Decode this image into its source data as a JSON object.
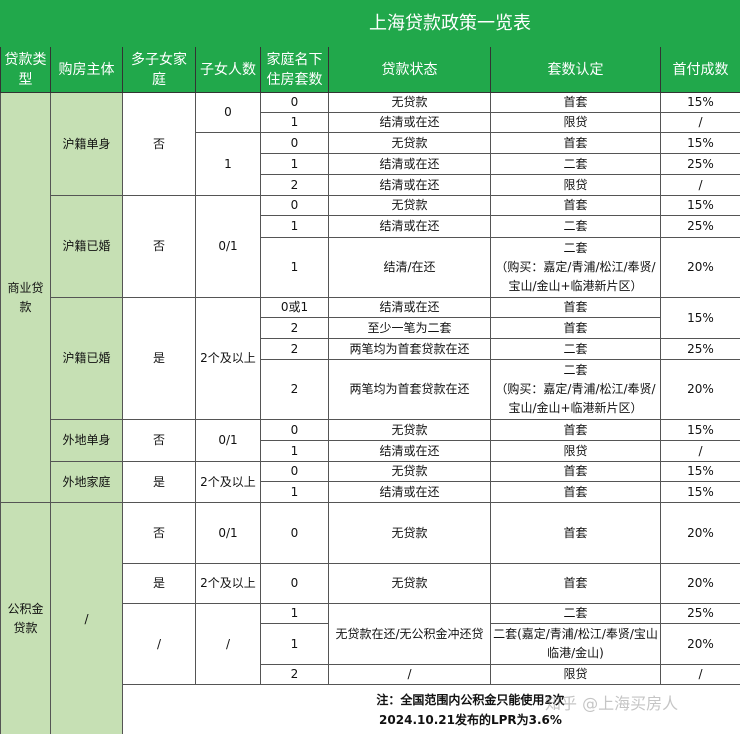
{
  "title": "上海贷款政策一览表",
  "headers": [
    "贷款类型",
    "购房主体",
    "多子女家庭",
    "子女人数",
    "家庭名下住房套数",
    "贷款状态",
    "套数认定",
    "首付成数"
  ],
  "loan_types": [
    "商业贷款",
    "公积金贷款"
  ],
  "buyers": [
    "沪籍单身",
    "沪籍已婚",
    "沪籍已婚",
    "外地单身",
    "外地家庭",
    "/"
  ],
  "multi_child": [
    "否",
    "否",
    "是",
    "否",
    "是",
    "否",
    "是",
    "/"
  ],
  "children": [
    "0",
    "1",
    "0/1",
    "2个及以上",
    "0/1",
    "2个及以上",
    "0/1",
    "2个及以上",
    "/"
  ],
  "rows": [
    {
      "units": "0",
      "status": "无贷款",
      "tier": "首套",
      "down": "15%"
    },
    {
      "units": "1",
      "status": "结清或在还",
      "tier": "限贷",
      "down": "/"
    },
    {
      "units": "0",
      "status": "无贷款",
      "tier": "首套",
      "down": "15%"
    },
    {
      "units": "1",
      "status": "结清或在还",
      "tier": "二套",
      "down": "25%"
    },
    {
      "units": "2",
      "status": "结清或在还",
      "tier": "限贷",
      "down": "/"
    },
    {
      "units": "0",
      "status": "无贷款",
      "tier": "首套",
      "down": "15%"
    },
    {
      "units": "1",
      "status": "结清或在还",
      "tier": "二套",
      "down": "25%"
    },
    {
      "units": "1",
      "status": "结清/在还",
      "tier": "二套",
      "tier_note": "（购买：嘉定/青浦/松江/奉贤/宝山/金山+临港新片区）",
      "down": "20%"
    },
    {
      "units": "0或1",
      "status": "结清或在还",
      "tier": "首套",
      "down": "15%"
    },
    {
      "units": "2",
      "status": "至少一笔为二套",
      "tier": "首套"
    },
    {
      "units": "2",
      "status": "两笔均为首套贷款在还",
      "tier": "二套",
      "down": "25%"
    },
    {
      "units": "2",
      "status": "两笔均为首套贷款在还",
      "tier": "二套",
      "tier_note": "（购买：嘉定/青浦/松江/奉贤/宝山/金山+临港新片区）",
      "down": "20%"
    },
    {
      "units": "0",
      "status": "无贷款",
      "tier": "首套",
      "down": "15%"
    },
    {
      "units": "1",
      "status": "结清或在还",
      "tier": "限贷",
      "down": "/"
    },
    {
      "units": "0",
      "status": "无贷款",
      "tier": "首套",
      "down": "15%"
    },
    {
      "units": "1",
      "status": "结清或在还",
      "tier": "首套",
      "down": "15%"
    },
    {
      "units": "0",
      "status": "无贷款",
      "tier": "首套",
      "down": "20%"
    },
    {
      "units": "0",
      "status": "无贷款",
      "tier": "首套",
      "down": "20%"
    },
    {
      "units": "1",
      "status": "无贷款在还/无公积金冲还贷",
      "tier": "二套",
      "down": "25%"
    },
    {
      "units": "1",
      "tier": "二套(嘉定/青浦/松江/奉贤/宝山临港/金山)",
      "down": "20%"
    },
    {
      "units": "2",
      "status": "/",
      "tier": "限贷",
      "down": "/"
    }
  ],
  "note": {
    "line1": "注：全国范围内公积金只能使用2次",
    "line2": "2024.10.21发布的LPR为3.6%"
  },
  "watermark": "知乎 @上海买房人",
  "colors": {
    "header_green": "#21a84b",
    "side_green": "#c6e0b4"
  }
}
